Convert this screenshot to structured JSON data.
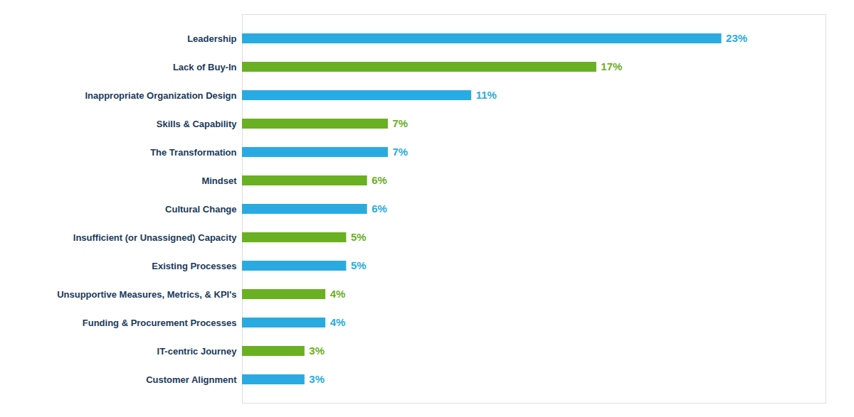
{
  "chart_data": {
    "type": "bar",
    "orientation": "horizontal",
    "categories": [
      "Customer Alignment",
      "IT-centric Journey",
      "Funding & Procurement Processes",
      "Unsupportive Measures, Metrics, & KPI's",
      "Existing Processes",
      "Insufficient (or Unassigned) Capacity",
      "Cultural Change",
      "Mindset",
      "The Transformation",
      "Skills & Capability",
      "Inappropriate Organization Design",
      "Lack of Buy-In",
      "Leadership"
    ],
    "values": [
      3,
      3,
      4,
      4,
      5,
      5,
      6,
      6,
      7,
      7,
      11,
      17,
      23
    ],
    "value_labels": [
      "3%",
      "3%",
      "4%",
      "4%",
      "5%",
      "5%",
      "6%",
      "6%",
      "7%",
      "7%",
      "11%",
      "17%",
      "23%"
    ],
    "colors": [
      "#29ABE2",
      "#6AB023",
      "#29ABE2",
      "#6AB023",
      "#29ABE2",
      "#6AB023",
      "#29ABE2",
      "#6AB023",
      "#29ABE2",
      "#6AB023",
      "#29ABE2",
      "#6AB023",
      "#29ABE2"
    ],
    "xlim": [
      0,
      28
    ],
    "data_labels": true,
    "tick_labels": "y",
    "grid": false
  }
}
